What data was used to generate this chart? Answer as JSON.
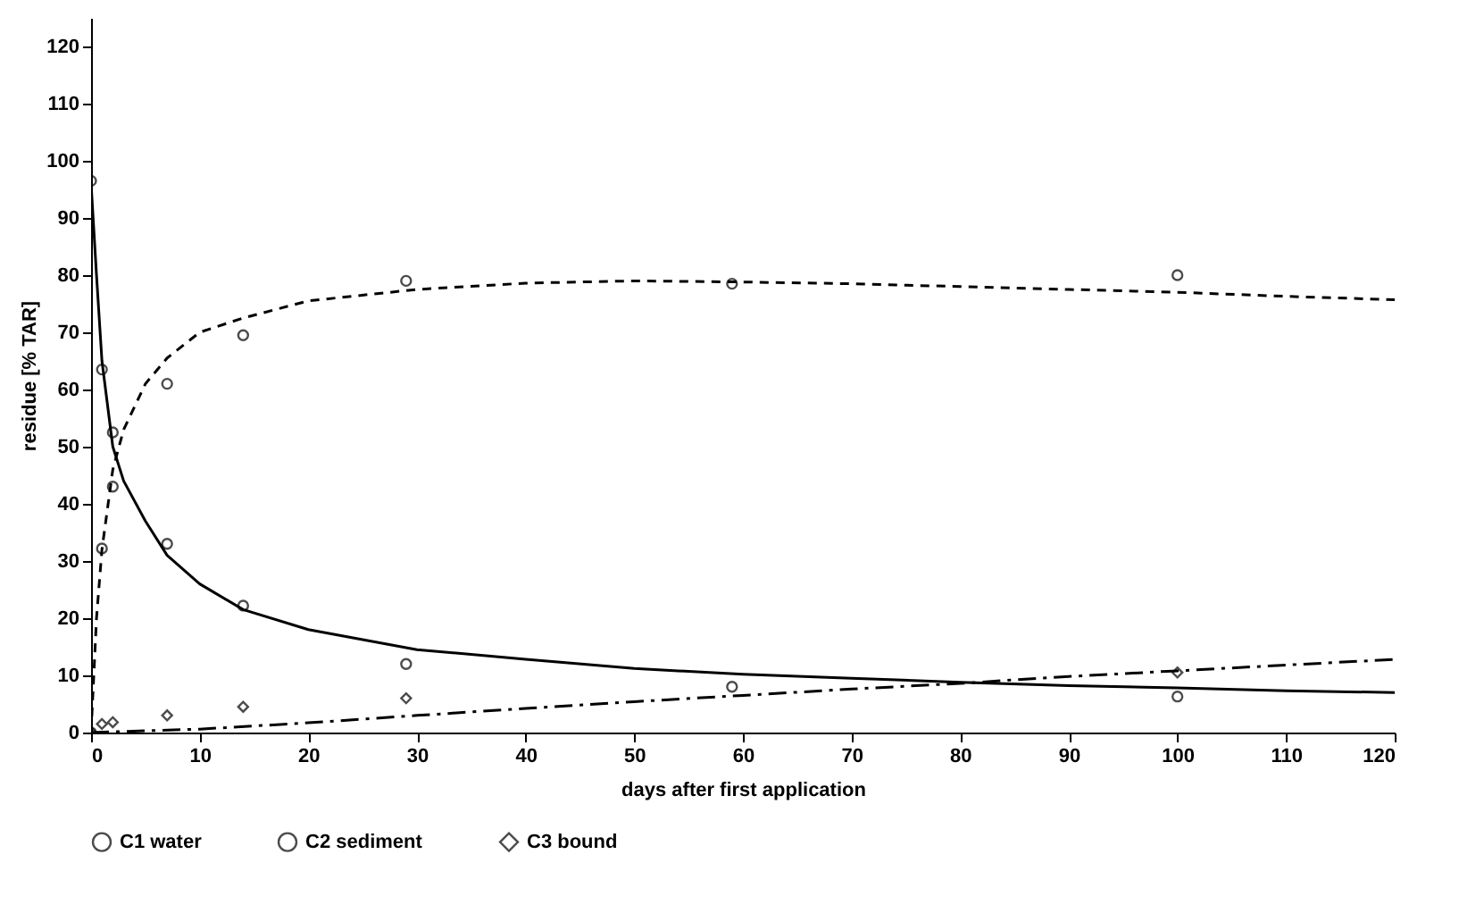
{
  "chart_data": {
    "type": "scatter",
    "xlabel": "days after first application",
    "ylabel": "residue [% TAR]",
    "xlim": [
      0,
      120
    ],
    "ylim": [
      0,
      125
    ],
    "xticks": [
      0,
      10,
      20,
      30,
      40,
      50,
      60,
      70,
      80,
      90,
      100,
      110,
      120
    ],
    "yticks": [
      0,
      10,
      20,
      30,
      40,
      50,
      60,
      70,
      80,
      90,
      100,
      110,
      120
    ],
    "grid": false,
    "legend": "bottom",
    "series": [
      {
        "name": "C1 water",
        "type": "scatter",
        "marker": "circle",
        "color": "#000000",
        "x": [
          0,
          1,
          2,
          7,
          14,
          29,
          59,
          100
        ],
        "values": [
          96.5,
          63.5,
          52.5,
          33,
          22.2,
          12,
          8,
          6.3
        ]
      },
      {
        "name": "C2 sediment",
        "type": "scatter",
        "marker": "circle",
        "color": "#000000",
        "x": [
          0,
          1,
          2,
          7,
          14,
          29,
          59,
          100
        ],
        "values": [
          0,
          32.2,
          43,
          61,
          69.5,
          79,
          78.5,
          80
        ]
      },
      {
        "name": "C3 bound",
        "type": "scatter",
        "marker": "diamond",
        "color": "#000000",
        "x": [
          0,
          1,
          2,
          7,
          14,
          29,
          59,
          100
        ],
        "values": [
          0,
          1.5,
          1.8,
          3,
          4.5,
          6,
          null,
          10.5
        ]
      },
      {
        "type": "line",
        "line_style": "solid",
        "color": "#000000",
        "x": [
          0,
          0.5,
          1,
          2,
          3,
          5,
          7,
          10,
          14,
          20,
          30,
          40,
          50,
          60,
          70,
          80,
          90,
          100,
          110,
          120
        ],
        "values": [
          96,
          80,
          65,
          50,
          44,
          37,
          31,
          26,
          21.5,
          18,
          14.5,
          12.8,
          11.2,
          10.2,
          9.5,
          8.8,
          8.2,
          7.8,
          7.3,
          7
        ]
      },
      {
        "type": "line",
        "line_style": "dashed",
        "color": "#000000",
        "x": [
          0,
          0.5,
          1,
          2,
          3,
          5,
          7,
          10,
          14,
          20,
          30,
          40,
          50,
          60,
          70,
          80,
          90,
          100,
          110,
          120
        ],
        "values": [
          0,
          20,
          32,
          46,
          53,
          61,
          65.5,
          70,
          72.5,
          75.5,
          77.5,
          78.6,
          79,
          78.8,
          78.5,
          78,
          77.5,
          77,
          76.3,
          75.7
        ]
      },
      {
        "type": "line",
        "line_style": "dashdot",
        "color": "#000000",
        "x": [
          0,
          10,
          20,
          30,
          40,
          50,
          60,
          70,
          80,
          90,
          100,
          110,
          120
        ],
        "values": [
          0,
          0.6,
          1.7,
          3,
          4.2,
          5.4,
          6.5,
          7.6,
          8.6,
          9.8,
          10.8,
          11.8,
          12.8
        ]
      }
    ]
  }
}
